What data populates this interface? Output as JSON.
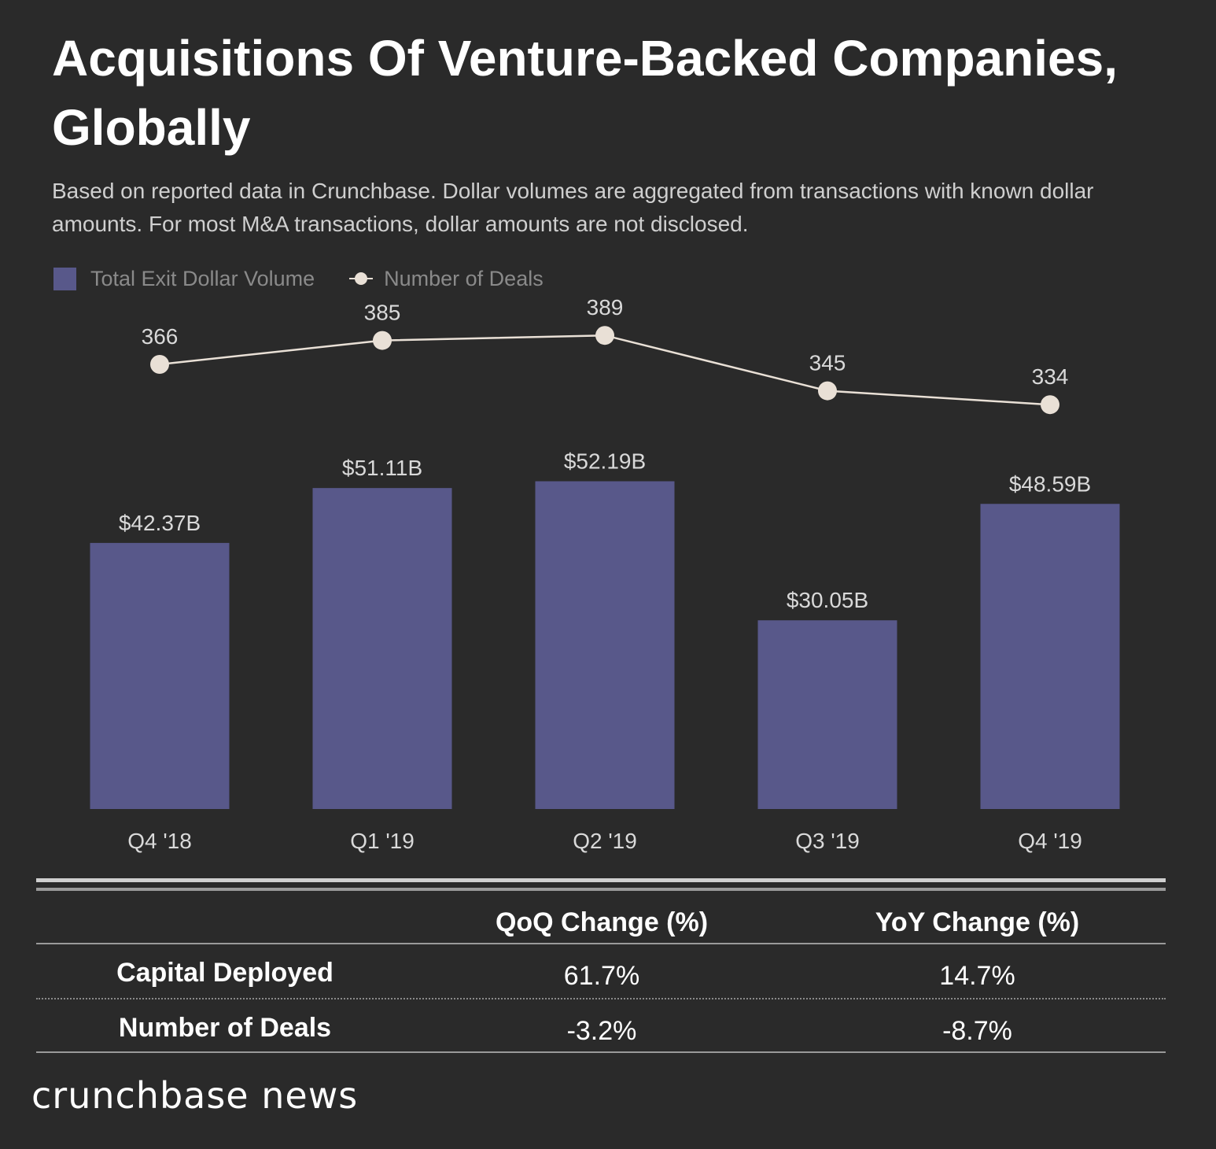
{
  "title": "Acquisitions Of Venture-Backed Companies, Globally",
  "subtitle": "Based on reported data in Crunchbase. Dollar volumes are aggregated from transactions with known dollar amounts. For most M&A transactions, dollar amounts are not disclosed.",
  "colors": {
    "bar": "#58588a",
    "line": "#e9e0d6",
    "background": "#2a2a2a"
  },
  "legend": {
    "bars": "Total Exit Dollar Volume",
    "line": "Number of Deals"
  },
  "chart_data": {
    "type": "bar+line",
    "categories": [
      "Q4 '18",
      "Q1 '19",
      "Q2 '19",
      "Q3 '19",
      "Q4 '19"
    ],
    "series": [
      {
        "name": "Total Exit Dollar Volume",
        "type": "bar",
        "unit": "$B",
        "values": [
          42.37,
          51.11,
          52.19,
          30.05,
          48.59
        ],
        "labels": [
          "$42.37B",
          "$51.11B",
          "$52.19B",
          "$30.05B",
          "$48.59B"
        ]
      },
      {
        "name": "Number of Deals",
        "type": "line",
        "values": [
          366,
          385,
          389,
          345,
          334
        ],
        "labels": [
          "366",
          "385",
          "389",
          "345",
          "334"
        ]
      }
    ],
    "grid": false,
    "legend_position": "top-left"
  },
  "table": {
    "headers": [
      "",
      "QoQ Change (%)",
      "YoY Change (%)"
    ],
    "rows": [
      {
        "label": "Capital Deployed",
        "qoq": "61.7%",
        "yoy": "14.7%"
      },
      {
        "label": "Number of Deals",
        "qoq": "-3.2%",
        "yoy": "-8.7%"
      }
    ]
  },
  "brand": "crunchbase news"
}
